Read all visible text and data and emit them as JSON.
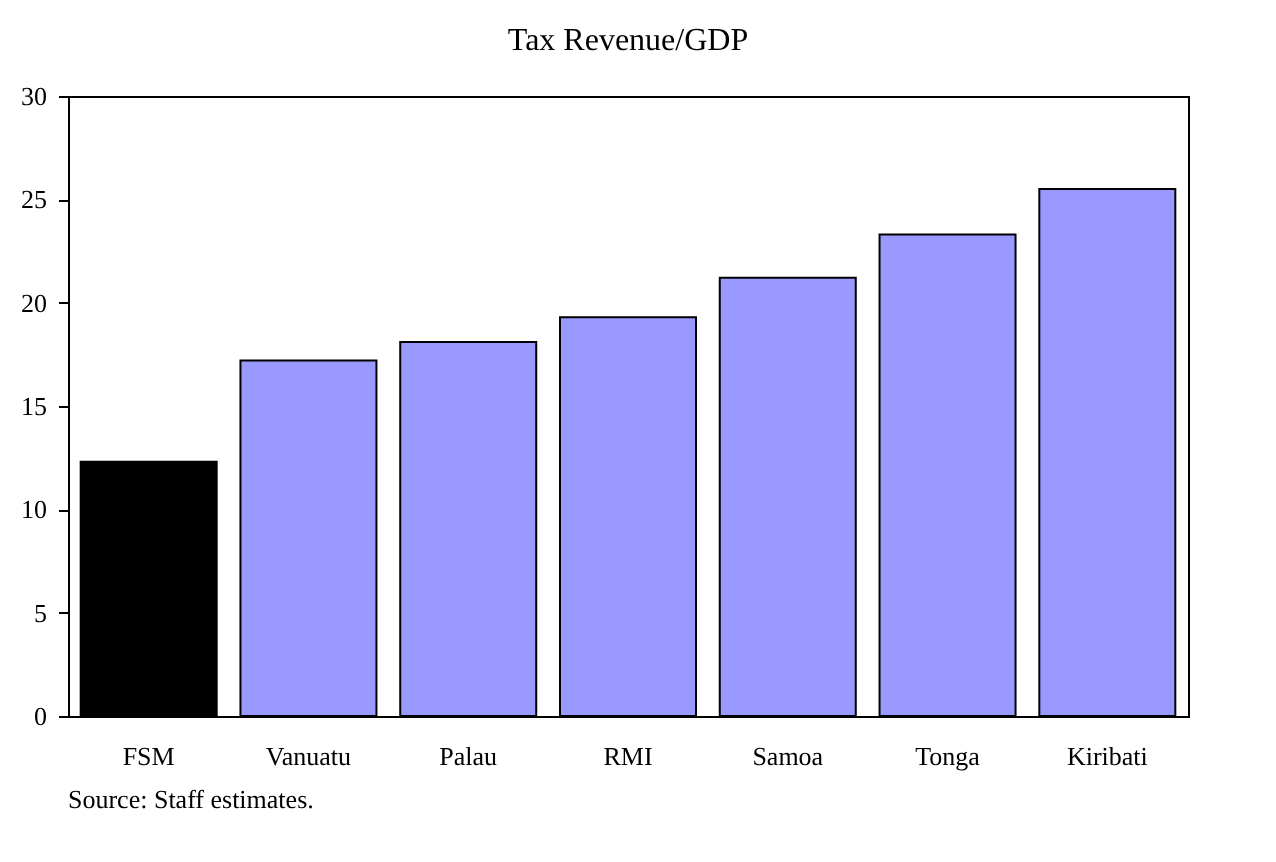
{
  "chart_data": {
    "type": "bar",
    "title": "Tax Revenue/GDP",
    "categories": [
      "FSM",
      "Vanuatu",
      "Palau",
      "RMI",
      "Samoa",
      "Tonga",
      "Kiribati"
    ],
    "values": [
      12.3,
      17.2,
      18.1,
      19.3,
      21.2,
      23.3,
      25.5
    ],
    "colors": [
      "#000000",
      "#9999ff",
      "#9999ff",
      "#9999ff",
      "#9999ff",
      "#9999ff",
      "#9999ff"
    ],
    "ylim": [
      0,
      30
    ],
    "yticks": [
      0,
      5,
      10,
      15,
      20,
      25,
      30
    ],
    "grid": false,
    "annotations": [
      "Source: Staff estimates."
    ]
  }
}
